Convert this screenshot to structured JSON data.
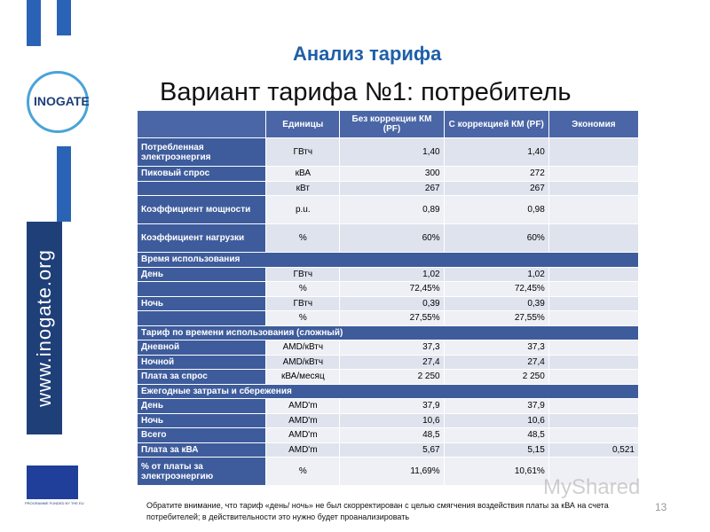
{
  "header": {
    "subtitle": "Анализ тарифа",
    "title": "Вариант тарифа №1: потребитель"
  },
  "logo": {
    "name": "INOGATE",
    "site": "www.inogate.org",
    "eu_caption": "PROGRAMME FUNDED BY THE EU"
  },
  "table": {
    "columns": [
      "Единицы",
      "Без коррекции КМ (PF)",
      "С коррекцией КМ (PF)",
      "Экономия"
    ],
    "rows": [
      {
        "label": "Потребленная электроэнергия",
        "unit": "ГВтч",
        "values": [
          "1,40",
          "1,40"
        ],
        "tall": true
      },
      {
        "label": "Пиковый спрос",
        "unit": "кВА",
        "values": [
          "300",
          "272"
        ]
      },
      {
        "unit": "кВт",
        "values": [
          "267",
          "267"
        ]
      },
      {
        "label": "Коэффициент мощности",
        "unit": "p.u.",
        "values": [
          "0,89",
          "0,98"
        ],
        "tall": true
      },
      {
        "label": "Коэффициент нагрузки",
        "unit": "%",
        "values": [
          "60%",
          "60%"
        ],
        "tall": true
      },
      {
        "section": "Время использования"
      },
      {
        "label": "День",
        "unit": "ГВтч",
        "values": [
          "1,02",
          "1,02"
        ]
      },
      {
        "unit": "%",
        "values": [
          "72,45%",
          "72,45%"
        ]
      },
      {
        "label": "Ночь",
        "unit": "ГВтч",
        "values": [
          "0,39",
          "0,39"
        ]
      },
      {
        "unit": "%",
        "values": [
          "27,55%",
          "27,55%"
        ]
      },
      {
        "section": "Тариф по времени использования (сложный)"
      },
      {
        "label": "Дневной",
        "unit": "AMD/кВтч",
        "values": [
          "37,3",
          "37,3"
        ]
      },
      {
        "label": "Ночной",
        "unit": "AMD/кВтч",
        "values": [
          "27,4",
          "27,4"
        ]
      },
      {
        "label": "Плата за спрос",
        "unit": "кВА/месяц",
        "values": [
          "2 250",
          "2 250"
        ]
      },
      {
        "section": "Ежегодные затраты и сбережения"
      },
      {
        "label": "День",
        "unit": "AMD'm",
        "values": [
          "37,9",
          "37,9"
        ]
      },
      {
        "label": "Ночь",
        "unit": "AMD'm",
        "values": [
          "10,6",
          "10,6"
        ]
      },
      {
        "label": "Всего",
        "unit": "AMD'm",
        "values": [
          "48,5",
          "48,5"
        ]
      },
      {
        "label": "Плата за кВА",
        "unit": "AMD'm",
        "values": [
          "5,67",
          "5,15"
        ],
        "saving": "0,521"
      },
      {
        "label": "% от платы за электроэнергию",
        "unit": "%",
        "values": [
          "11,69%",
          "10,61%"
        ],
        "tall": true
      }
    ]
  },
  "footnote": "Обратите внимание, что тариф «день/ ночь» не был скорректирован с целью смягчения воздействия платы за кВА на счета потребителей; в действительности  это нужно  будет проанализировать",
  "page_number": "13",
  "watermark": "MyShared"
}
